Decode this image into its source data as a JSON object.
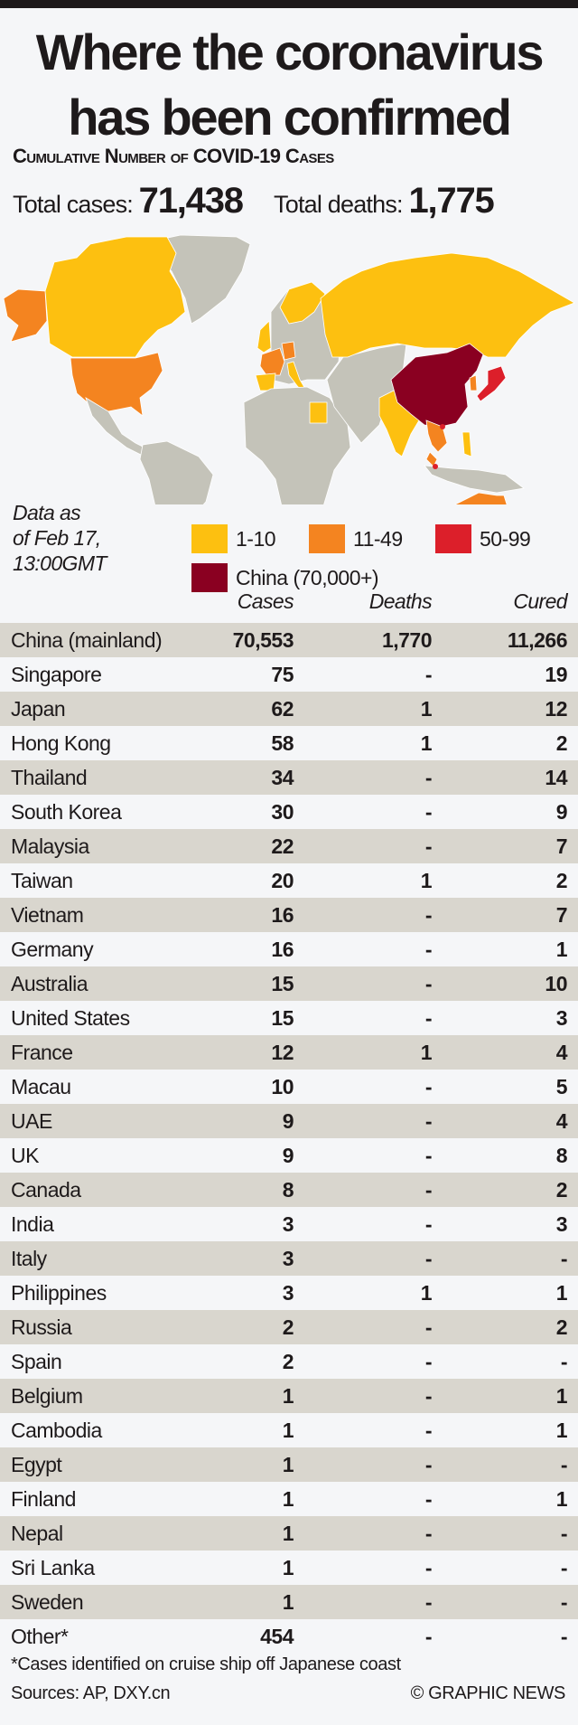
{
  "title_line1": "Where the coronavirus",
  "title_line2": "has been confirmed",
  "subtitle": "Cumulative Number of COVID-19 Cases",
  "totals": {
    "cases_label": "Total cases:",
    "cases": "71,438",
    "deaths_label": "Total deaths:",
    "deaths": "1,775"
  },
  "note": [
    "Data as",
    "of Feb 17,",
    "13:00GMT"
  ],
  "legend": [
    {
      "label": "1-10",
      "color": "#fdc010"
    },
    {
      "label": "11-49",
      "color": "#f48420"
    },
    {
      "label": "50-99",
      "color": "#dc1f2a"
    },
    {
      "label": "China (70,000+)",
      "color": "#8a0021"
    }
  ],
  "map_colors": {
    "land": "#c4c3b9",
    "background": "#f5f6f8"
  },
  "chart_data": {
    "type": "table",
    "columns": [
      "Cases",
      "Deaths",
      "Cured"
    ],
    "rows": [
      {
        "country": "China (mainland)",
        "cases": "70,553",
        "deaths": "1,770",
        "cured": "11,266"
      },
      {
        "country": "Singapore",
        "cases": "75",
        "deaths": "-",
        "cured": "19"
      },
      {
        "country": "Japan",
        "cases": "62",
        "deaths": "1",
        "cured": "12"
      },
      {
        "country": "Hong Kong",
        "cases": "58",
        "deaths": "1",
        "cured": "2"
      },
      {
        "country": "Thailand",
        "cases": "34",
        "deaths": "-",
        "cured": "14"
      },
      {
        "country": "South Korea",
        "cases": "30",
        "deaths": "-",
        "cured": "9"
      },
      {
        "country": "Malaysia",
        "cases": "22",
        "deaths": "-",
        "cured": "7"
      },
      {
        "country": "Taiwan",
        "cases": "20",
        "deaths": "1",
        "cured": "2"
      },
      {
        "country": "Vietnam",
        "cases": "16",
        "deaths": "-",
        "cured": "7"
      },
      {
        "country": "Germany",
        "cases": "16",
        "deaths": "-",
        "cured": "1"
      },
      {
        "country": "Australia",
        "cases": "15",
        "deaths": "-",
        "cured": "10"
      },
      {
        "country": "United States",
        "cases": "15",
        "deaths": "-",
        "cured": "3"
      },
      {
        "country": "France",
        "cases": "12",
        "deaths": "1",
        "cured": "4"
      },
      {
        "country": "Macau",
        "cases": "10",
        "deaths": "-",
        "cured": "5"
      },
      {
        "country": "UAE",
        "cases": "9",
        "deaths": "-",
        "cured": "4"
      },
      {
        "country": "UK",
        "cases": "9",
        "deaths": "-",
        "cured": "8"
      },
      {
        "country": "Canada",
        "cases": "8",
        "deaths": "-",
        "cured": "2"
      },
      {
        "country": "India",
        "cases": "3",
        "deaths": "-",
        "cured": "3"
      },
      {
        "country": "Italy",
        "cases": "3",
        "deaths": "-",
        "cured": "-"
      },
      {
        "country": "Philippines",
        "cases": "3",
        "deaths": "1",
        "cured": "1"
      },
      {
        "country": "Russia",
        "cases": "2",
        "deaths": "-",
        "cured": "2"
      },
      {
        "country": "Spain",
        "cases": "2",
        "deaths": "-",
        "cured": "-"
      },
      {
        "country": "Belgium",
        "cases": "1",
        "deaths": "-",
        "cured": "1"
      },
      {
        "country": "Cambodia",
        "cases": "1",
        "deaths": "-",
        "cured": "1"
      },
      {
        "country": "Egypt",
        "cases": "1",
        "deaths": "-",
        "cured": "-"
      },
      {
        "country": "Finland",
        "cases": "1",
        "deaths": "-",
        "cured": "1"
      },
      {
        "country": "Nepal",
        "cases": "1",
        "deaths": "-",
        "cured": "-"
      },
      {
        "country": "Sri Lanka",
        "cases": "1",
        "deaths": "-",
        "cured": "-"
      },
      {
        "country": "Sweden",
        "cases": "1",
        "deaths": "-",
        "cured": "-"
      },
      {
        "country": "Other*",
        "cases": "454",
        "deaths": "-",
        "cured": "-"
      }
    ]
  },
  "footnote": "*Cases identified on cruise ship off Japanese coast",
  "sources": "Sources: AP, DXY.cn",
  "credit": "© GRAPHIC NEWS"
}
